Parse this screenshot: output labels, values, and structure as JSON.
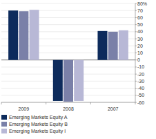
{
  "chart_data": {
    "type": "bar",
    "categories": [
      "2009",
      "2008",
      "2007"
    ],
    "series": [
      {
        "name": "Emerging Markets Equity A",
        "color": "#0d2b5c",
        "values": [
          70,
          -58,
          41
        ]
      },
      {
        "name": "Emerging Markets Equity B",
        "color": "#7a80a8",
        "values": [
          69,
          -59,
          40
        ]
      },
      {
        "name": "Emerging Markets Equity I",
        "color": "#b8b8d6",
        "values": [
          71,
          -58,
          42
        ]
      }
    ],
    "ylim": [
      -60,
      80
    ],
    "yticks": [
      -60,
      -50,
      -40,
      -30,
      -20,
      -10,
      0,
      10,
      20,
      30,
      40,
      50,
      60,
      70,
      {
        "value": 80,
        "label": "80%"
      }
    ],
    "grid": true,
    "legend": "bottom"
  }
}
